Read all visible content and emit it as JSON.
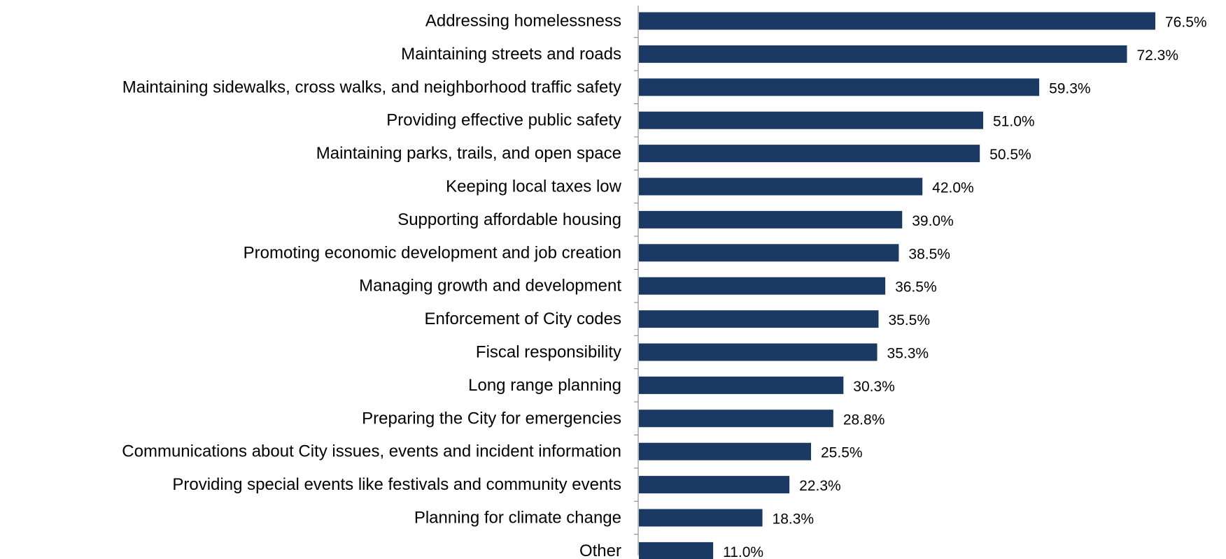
{
  "chart_data": {
    "type": "bar",
    "orientation": "horizontal",
    "title": "",
    "xlabel": "",
    "ylabel": "",
    "xlim": [
      0,
      80
    ],
    "grid": false,
    "legend": "none",
    "bar_color": "#1b3a63",
    "value_suffix": "%",
    "categories": [
      "Addressing homelessness",
      "Maintaining streets and roads",
      "Maintaining sidewalks, cross walks, and neighborhood traffic safety",
      "Providing effective public safety",
      "Maintaining parks, trails, and open space",
      "Keeping local taxes low",
      "Supporting affordable housing",
      "Promoting economic development and job creation",
      "Managing growth and development",
      "Enforcement of City codes",
      "Fiscal responsibility",
      "Long range planning",
      "Preparing the City for emergencies",
      "Communications about City issues, events and incident information",
      "Providing special events like festivals and community events",
      "Planning for climate change",
      "Other"
    ],
    "values": [
      76.5,
      72.3,
      59.3,
      51.0,
      50.5,
      42.0,
      39.0,
      38.5,
      36.5,
      35.5,
      35.3,
      30.3,
      28.8,
      25.5,
      22.3,
      18.3,
      11.0
    ],
    "value_labels": [
      "76.5%",
      "72.3%",
      "59.3%",
      "51.0%",
      "50.5%",
      "42.0%",
      "39.0%",
      "38.5%",
      "36.5%",
      "35.5%",
      "35.3%",
      "30.3%",
      "28.8%",
      "25.5%",
      "22.3%",
      "18.3%",
      "11.0%"
    ]
  }
}
